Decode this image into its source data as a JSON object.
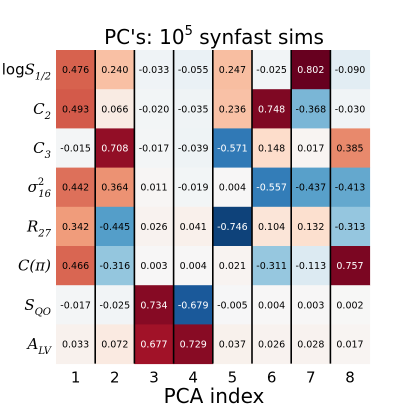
{
  "chart_data": {
    "type": "heatmap",
    "title": "PC's: 10",
    "title_exponent": "5",
    "title_suffix": " synfast sims",
    "xlabel": "PCA index",
    "ylabel": "",
    "x_ticks": [
      "1",
      "2",
      "3",
      "4",
      "5",
      "6",
      "7",
      "8"
    ],
    "rows": [
      {
        "base": "logS",
        "sub": "1/2",
        "sup": "",
        "italic": true,
        "prefix": "log"
      },
      {
        "base": "C",
        "sub": "2",
        "sup": "",
        "italic": true
      },
      {
        "base": "C",
        "sub": "3",
        "sup": "",
        "italic": true
      },
      {
        "base": "σ",
        "sub": "16",
        "sup": "2",
        "italic": true
      },
      {
        "base": "R",
        "sub": "27",
        "sup": "",
        "italic": true
      },
      {
        "base": "C(π)",
        "sub": "",
        "sup": "",
        "italic": true
      },
      {
        "base": "S",
        "sub": "QO",
        "sup": "",
        "italic": true
      },
      {
        "base": "A",
        "sub": "LV",
        "sup": "",
        "italic": true
      }
    ],
    "values": [
      [
        0.476,
        0.24,
        -0.033,
        -0.055,
        0.247,
        -0.025,
        0.802,
        -0.09
      ],
      [
        0.493,
        0.066,
        -0.02,
        -0.035,
        0.236,
        0.748,
        -0.368,
        -0.03
      ],
      [
        -0.015,
        0.708,
        -0.017,
        -0.039,
        -0.571,
        0.148,
        0.017,
        0.385
      ],
      [
        0.442,
        0.364,
        0.011,
        -0.019,
        0.004,
        -0.557,
        -0.437,
        -0.413
      ],
      [
        0.342,
        -0.445,
        0.026,
        0.041,
        -0.746,
        0.104,
        0.132,
        -0.313
      ],
      [
        0.466,
        -0.316,
        0.003,
        0.004,
        0.021,
        -0.311,
        -0.113,
        0.757
      ],
      [
        -0.017,
        -0.025,
        0.734,
        -0.679,
        -0.005,
        0.004,
        0.003,
        0.002
      ],
      [
        0.033,
        0.072,
        0.677,
        0.729,
        0.037,
        0.026,
        0.028,
        0.017
      ]
    ],
    "labels": [
      [
        "0.476",
        "0.240",
        "-0.033",
        "-0.055",
        "0.247",
        "-0.025",
        "0.802",
        "-0.090"
      ],
      [
        "0.493",
        "0.066",
        "-0.020",
        "-0.035",
        "0.236",
        "0.748",
        "-0.368",
        "-0.030"
      ],
      [
        "-0.015",
        "0.708",
        "-0.017",
        "-0.039",
        "-0.571",
        "0.148",
        "0.017",
        "0.385"
      ],
      [
        "0.442",
        "0.364",
        "0.011",
        "-0.019",
        "0.004",
        "-0.557",
        "-0.437",
        "-0.413"
      ],
      [
        "0.342",
        "-0.445",
        "0.026",
        "0.041",
        "-0.746",
        "0.104",
        "0.132",
        "-0.313"
      ],
      [
        "0.466",
        "-0.316",
        "0.003",
        "0.004",
        "0.021",
        "-0.311",
        "-0.113",
        "0.757"
      ],
      [
        "-0.017",
        "-0.025",
        "0.734",
        "-0.679",
        "-0.005",
        "0.004",
        "0.003",
        "0.002"
      ],
      [
        "0.033",
        "0.072",
        "0.677",
        "0.729",
        "0.037",
        "0.026",
        "0.028",
        "0.017"
      ]
    ],
    "colormap": "RdBu_r",
    "vmin": -0.8,
    "vmax": 0.8,
    "grid": false,
    "colors": {
      "positive_max": "#800020",
      "negative_max": "#08306b",
      "separator": "#000000",
      "text": "#000000"
    }
  }
}
